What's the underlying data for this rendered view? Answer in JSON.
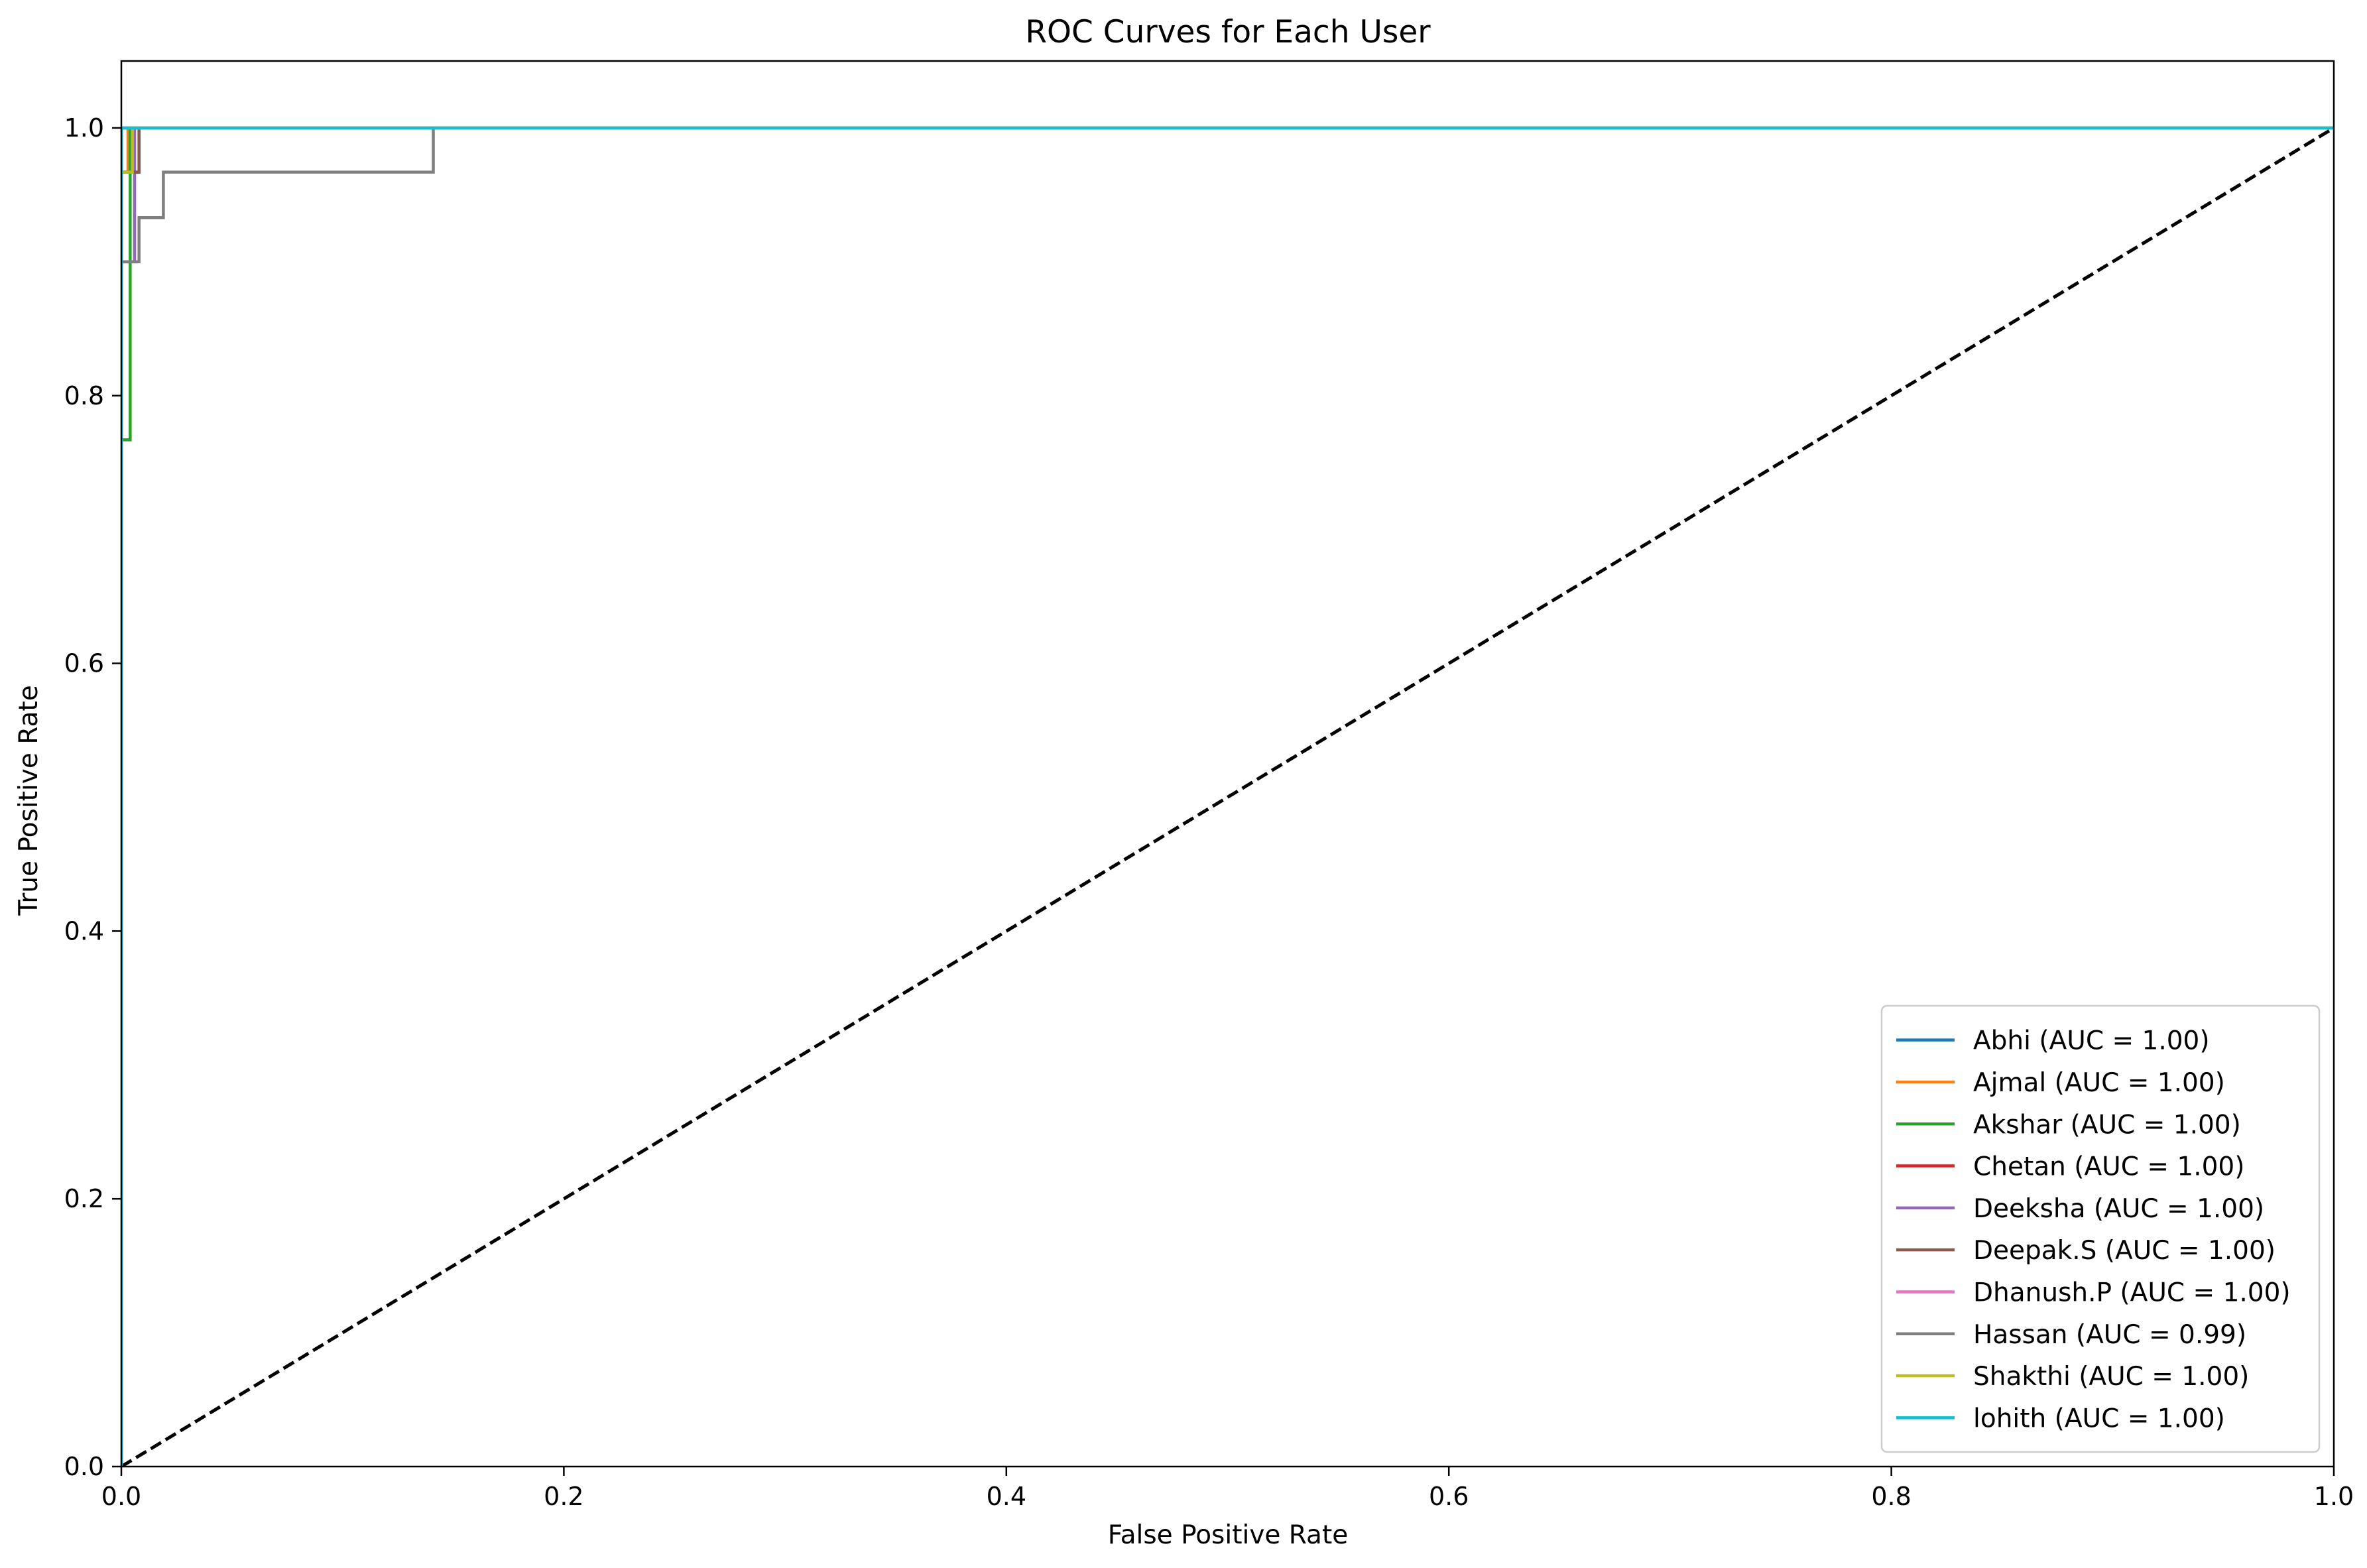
{
  "chart_data": {
    "type": "line",
    "title": "ROC Curves for Each User",
    "xlabel": "False Positive Rate",
    "ylabel": "True Positive Rate",
    "xlim": [
      0.0,
      1.0
    ],
    "ylim": [
      0.0,
      1.05
    ],
    "xticks": [
      "0.0",
      "0.2",
      "0.4",
      "0.6",
      "0.8",
      "1.0"
    ],
    "yticks": [
      "0.0",
      "0.2",
      "0.4",
      "0.6",
      "0.8",
      "1.0"
    ],
    "grid": false,
    "legend_position": "lower right",
    "series": [
      {
        "name": "Abhi (AUC = 1.00)",
        "color": "#1f77b4",
        "x": [
          0,
          0,
          1
        ],
        "y": [
          0,
          1,
          1
        ]
      },
      {
        "name": "Ajmal (AUC = 1.00)",
        "color": "#ff7f0e",
        "x": [
          0,
          0,
          0.003,
          0.003,
          1
        ],
        "y": [
          0,
          0.967,
          0.967,
          1,
          1
        ]
      },
      {
        "name": "Akshar (AUC = 1.00)",
        "color": "#2ca02c",
        "x": [
          0,
          0,
          0.004,
          0.004,
          1
        ],
        "y": [
          0,
          0.767,
          0.767,
          1,
          1
        ]
      },
      {
        "name": "Chetan (AUC = 1.00)",
        "color": "#d62728",
        "x": [
          0,
          0,
          0.008,
          0.008,
          1
        ],
        "y": [
          0,
          0.967,
          0.967,
          1,
          1
        ]
      },
      {
        "name": "Deeksha (AUC = 1.00)",
        "color": "#9467bd",
        "x": [
          0,
          0,
          0.006,
          0.006,
          1
        ],
        "y": [
          0,
          0.9,
          0.9,
          1,
          1
        ]
      },
      {
        "name": "Deepak.S (AUC = 1.00)",
        "color": "#8c564b",
        "x": [
          0,
          0,
          0.008,
          0.008,
          1
        ],
        "y": [
          0,
          0.967,
          0.967,
          1,
          1
        ]
      },
      {
        "name": "Dhanush.P (AUC = 1.00)",
        "color": "#e377c2",
        "x": [
          0,
          0,
          1
        ],
        "y": [
          0,
          1,
          1
        ]
      },
      {
        "name": "Hassan (AUC = 0.99)",
        "color": "#7f7f7f",
        "x": [
          0,
          0,
          0.008,
          0.008,
          0.019,
          0.019,
          0.141,
          0.141,
          1
        ],
        "y": [
          0,
          0.9,
          0.9,
          0.933,
          0.933,
          0.967,
          0.967,
          1,
          1
        ]
      },
      {
        "name": "Shakthi (AUC = 1.00)",
        "color": "#bcbd22",
        "x": [
          0,
          0,
          0.005,
          0.005,
          1
        ],
        "y": [
          0,
          0.967,
          0.967,
          1,
          1
        ]
      },
      {
        "name": "lohith (AUC = 1.00)",
        "color": "#17becf",
        "x": [
          0,
          0,
          1
        ],
        "y": [
          0,
          1,
          1
        ]
      }
    ],
    "reference_line": {
      "x": [
        0,
        1
      ],
      "y": [
        0,
        1
      ],
      "color": "#000000",
      "style": "dashed"
    }
  }
}
